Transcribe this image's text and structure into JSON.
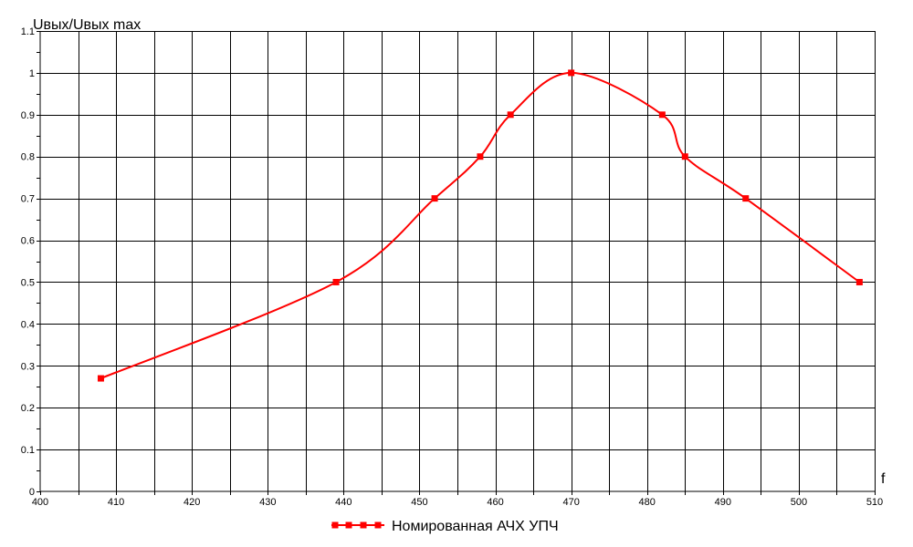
{
  "chart_data": {
    "type": "line",
    "title": "",
    "ylabel": "Uвых/Uвых max",
    "xlabel": "f",
    "xlim": [
      400,
      510
    ],
    "ylim": [
      0,
      1.1
    ],
    "x_ticks": [
      "400",
      "410",
      "420",
      "430",
      "440",
      "450",
      "460",
      "470",
      "480",
      "490",
      "500",
      "510"
    ],
    "y_ticks": [
      "0",
      "0.1",
      "0.2",
      "0.3",
      "0.4",
      "0.5",
      "0.6",
      "0.7",
      "0.8",
      "0.9",
      "1",
      "1.1"
    ],
    "grid": true,
    "legend_position": "bottom-center",
    "series": [
      {
        "name": "Номированная АЧХ УПЧ",
        "color": "#ff0000",
        "marker": "square",
        "x": [
          408,
          439,
          452,
          458,
          462,
          470,
          482,
          485,
          493,
          508
        ],
        "y": [
          0.27,
          0.5,
          0.7,
          0.8,
          0.9,
          1.0,
          0.9,
          0.8,
          0.7,
          0.5
        ]
      }
    ]
  }
}
